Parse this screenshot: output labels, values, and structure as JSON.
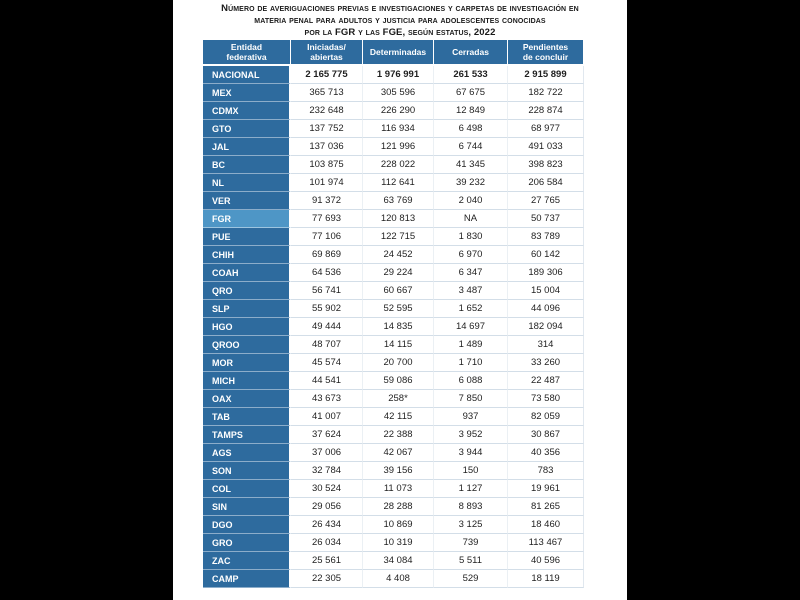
{
  "page": {
    "background": "#000000",
    "panel_background": "#ffffff"
  },
  "colors": {
    "header_blue": "#2E6B9E",
    "highlight_blue": "#4E96C6",
    "grid_line": "#D3DEE8",
    "title_text": "#1A1A1A"
  },
  "title": {
    "lines": [
      "Número de averiguaciones previas e investigaciones y carpetas de investigación en",
      "materia penal para adultos y justicia para adolescentes conocidas",
      "por la FGR y las FGE, según estatus, 2022"
    ]
  },
  "chart_data": {
    "type": "table",
    "title": "NÚMERO DE AVERIGUACIONES PREVIAS E INVESTIGACIONES Y CARPETAS DE INVESTIGACIÓN EN MATERIA PENAL PARA ADULTOS Y JUSTICIA PARA ADOLESCENTES CONOCIDAS POR LA FGR Y LAS FGE, SEGÚN ESTATUS, 2022",
    "columns": [
      {
        "label": "Entidad federativa",
        "lines": [
          "Entidad",
          "federativa"
        ]
      },
      {
        "label": "Iniciadas/abiertas",
        "lines": [
          "Iniciadas/",
          "abiertas"
        ]
      },
      {
        "label": "Determinadas",
        "lines": [
          "Determinadas"
        ]
      },
      {
        "label": "Cerradas",
        "lines": [
          "Cerradas"
        ]
      },
      {
        "label": "Pendientes de concluir",
        "lines": [
          "Pendientes",
          "de concluir"
        ]
      }
    ],
    "rows": [
      {
        "entity": "NACIONAL",
        "style": "national",
        "values": [
          "2 165 775",
          "1 976 991",
          "261 533",
          "2 915 899"
        ]
      },
      {
        "entity": "MEX",
        "style": "",
        "values": [
          "365 713",
          "305 596",
          "67 675",
          "182 722"
        ]
      },
      {
        "entity": "CDMX",
        "style": "",
        "values": [
          "232 648",
          "226 290",
          "12 849",
          "228 874"
        ]
      },
      {
        "entity": "GTO",
        "style": "",
        "values": [
          "137 752",
          "116 934",
          "6 498",
          "68 977"
        ]
      },
      {
        "entity": "JAL",
        "style": "",
        "values": [
          "137 036",
          "121 996",
          "6 744",
          "491 033"
        ]
      },
      {
        "entity": "BC",
        "style": "",
        "values": [
          "103 875",
          "228 022",
          "41 345",
          "398 823"
        ]
      },
      {
        "entity": "NL",
        "style": "",
        "values": [
          "101 974",
          "112 641",
          "39 232",
          "206 584"
        ]
      },
      {
        "entity": "VER",
        "style": "",
        "values": [
          "91 372",
          "63 769",
          "2 040",
          "27 765"
        ]
      },
      {
        "entity": "FGR",
        "style": "highlight",
        "values": [
          "77 693",
          "120 813",
          "NA",
          "50 737"
        ]
      },
      {
        "entity": "PUE",
        "style": "",
        "values": [
          "77 106",
          "122 715",
          "1 830",
          "83 789"
        ]
      },
      {
        "entity": "CHIH",
        "style": "",
        "values": [
          "69 869",
          "24 452",
          "6 970",
          "60 142"
        ]
      },
      {
        "entity": "COAH",
        "style": "",
        "values": [
          "64 536",
          "29 224",
          "6 347",
          "189 306"
        ]
      },
      {
        "entity": "QRO",
        "style": "",
        "values": [
          "56 741",
          "60 667",
          "3 487",
          "15 004"
        ]
      },
      {
        "entity": "SLP",
        "style": "",
        "values": [
          "55 902",
          "52 595",
          "1 652",
          "44 096"
        ]
      },
      {
        "entity": "HGO",
        "style": "",
        "values": [
          "49 444",
          "14 835",
          "14 697",
          "182 094"
        ]
      },
      {
        "entity": "QROO",
        "style": "",
        "values": [
          "48 707",
          "14 115",
          "1 489",
          "314"
        ]
      },
      {
        "entity": "MOR",
        "style": "",
        "values": [
          "45 574",
          "20 700",
          "1 710",
          "33 260"
        ]
      },
      {
        "entity": "MICH",
        "style": "",
        "values": [
          "44 541",
          "59 086",
          "6 088",
          "22 487"
        ]
      },
      {
        "entity": "OAX",
        "style": "",
        "values": [
          "43 673",
          "258*",
          "7 850",
          "73 580"
        ]
      },
      {
        "entity": "TAB",
        "style": "",
        "values": [
          "41 007",
          "42 115",
          "937",
          "82 059"
        ]
      },
      {
        "entity": "TAMPS",
        "style": "",
        "values": [
          "37 624",
          "22 388",
          "3 952",
          "30 867"
        ]
      },
      {
        "entity": "AGS",
        "style": "",
        "values": [
          "37 006",
          "42 067",
          "3 944",
          "40 356"
        ]
      },
      {
        "entity": "SON",
        "style": "",
        "values": [
          "32 784",
          "39 156",
          "150",
          "783"
        ]
      },
      {
        "entity": "COL",
        "style": "",
        "values": [
          "30 524",
          "11 073",
          "1 127",
          "19 961"
        ]
      },
      {
        "entity": "SIN",
        "style": "",
        "values": [
          "29 056",
          "28 288",
          "8 893",
          "81 265"
        ]
      },
      {
        "entity": "DGO",
        "style": "",
        "values": [
          "26 434",
          "10 869",
          "3 125",
          "18 460"
        ]
      },
      {
        "entity": "GRO",
        "style": "",
        "values": [
          "26 034",
          "10 319",
          "739",
          "113 467"
        ]
      },
      {
        "entity": "ZAC",
        "style": "",
        "values": [
          "25 561",
          "34 084",
          "5 511",
          "40 596"
        ]
      },
      {
        "entity": "CAMP",
        "style": "",
        "values": [
          "22 305",
          "4 408",
          "529",
          "18 119"
        ]
      }
    ]
  }
}
